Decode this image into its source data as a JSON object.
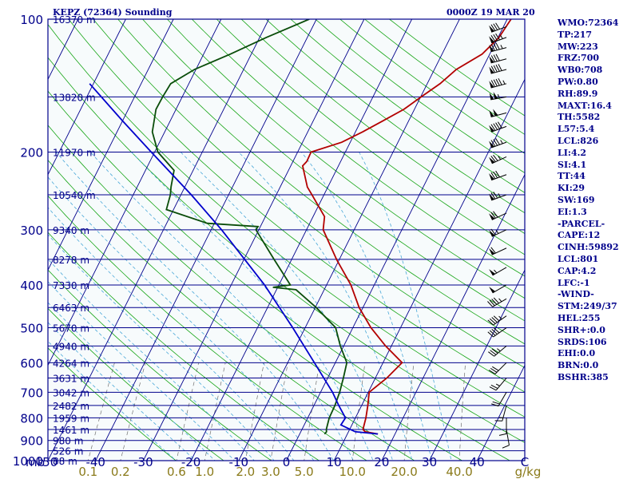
{
  "header": {
    "station": "KEPZ (72364) Sounding",
    "valid_time": "0000Z 19 MAR 20"
  },
  "stats": [
    "WMO:72364",
    "TP:217",
    "MW:223",
    "FRZ:700",
    "WB0:708",
    "PW:0.80",
    "RH:89.9",
    "MAXT:16.4",
    "TH:5582",
    "L57:5.4",
    "LCL:826",
    "LI:4.2",
    "SI:4.1",
    "TT:44",
    "KI:29",
    "SW:169",
    "EI:1.3",
    "-PARCEL-",
    "CAPE:12",
    "CINH:59892",
    "LCL:801",
    "CAP:4.2",
    "LFC:-1",
    "-WIND-",
    "STM:249/37",
    "HEL:255",
    "SHR+:0.0",
    "SRDS:106",
    "EHI:0.0",
    "BRN:0.0",
    "BSHR:385"
  ],
  "colors": {
    "frame": "#00008b",
    "background": "#f7fbfc",
    "isotherm": "#00008b",
    "dry_adiabat": "#16a516",
    "moist_adiabat": "#4aa8d8",
    "mixing_ratio": "#707070",
    "temperature": "#b30000",
    "dewpoint": "#0a4d0a",
    "parcel": "#0000cc",
    "wind_barb": "#000000",
    "mixing_ratio_label": "#8a7a1a"
  },
  "chart_data": {
    "type": "line",
    "title": "",
    "xlabel": "",
    "ylabel": "mb",
    "x_unit": "C",
    "mixing_ratio_unit": "g/kg",
    "xlim": [
      -50,
      50
    ],
    "ylim": [
      1000,
      100
    ],
    "y_scale": "log",
    "grid": true,
    "pressure_ticks": [
      100,
      200,
      300,
      400,
      500,
      600,
      700,
      800,
      900,
      1000
    ],
    "temperature_ticks": [
      -50,
      -40,
      -30,
      -20,
      -10,
      0,
      10,
      20,
      30,
      40
    ],
    "mixing_ratio_ticks": [
      {
        "label": "0.1",
        "value": 0.1
      },
      {
        "label": "0.2",
        "value": 0.2
      },
      {
        "label": "0.6",
        "value": 0.6
      },
      {
        "label": "1.0",
        "value": 1.0
      },
      {
        "label": "2.0",
        "value": 2.0
      },
      {
        "label": "3.0",
        "value": 3.0
      },
      {
        "label": "5.0",
        "value": 5.0
      },
      {
        "label": "10.0",
        "value": 10.0
      },
      {
        "label": "20.0",
        "value": 20.0
      },
      {
        "label": "40.0",
        "value": 40.0
      }
    ],
    "height_levels": [
      {
        "p": 100,
        "label": "16370 m"
      },
      {
        "p": 150,
        "label": "13820 m"
      },
      {
        "p": 200,
        "label": "11970 m"
      },
      {
        "p": 250,
        "label": "10540 m"
      },
      {
        "p": 300,
        "label": "9340 m"
      },
      {
        "p": 350,
        "label": "8278 m"
      },
      {
        "p": 400,
        "label": "7330 m"
      },
      {
        "p": 450,
        "label": "6463 m"
      },
      {
        "p": 500,
        "label": "5670 m"
      },
      {
        "p": 550,
        "label": "4940 m"
      },
      {
        "p": 600,
        "label": "4264 m"
      },
      {
        "p": 650,
        "label": "3631 m"
      },
      {
        "p": 700,
        "label": "3042 m"
      },
      {
        "p": 750,
        "label": "2482 m"
      },
      {
        "p": 800,
        "label": "1959 m"
      },
      {
        "p": 850,
        "label": "1461 m"
      },
      {
        "p": 900,
        "label": "980 m"
      },
      {
        "p": 950,
        "label": "526 m"
      },
      {
        "p": 1000,
        "label": "88 m"
      }
    ],
    "series": [
      {
        "key": "temperature",
        "points": [
          [
            870,
            16.4
          ],
          [
            860,
            13.5
          ],
          [
            850,
            12.8
          ],
          [
            800,
            12.2
          ],
          [
            750,
            11.3
          ],
          [
            700,
            10.2
          ],
          [
            650,
            12.4
          ],
          [
            600,
            14.0
          ],
          [
            550,
            8.8
          ],
          [
            500,
            3.8
          ],
          [
            450,
            -0.8
          ],
          [
            400,
            -4.9
          ],
          [
            350,
            -10.6
          ],
          [
            300,
            -16.5
          ],
          [
            280,
            -17.6
          ],
          [
            250,
            -22.5
          ],
          [
            240,
            -24.3
          ],
          [
            215,
            -27.5
          ],
          [
            210,
            -27.1
          ],
          [
            200,
            -27.2
          ],
          [
            190,
            -21.8
          ],
          [
            180,
            -18.5
          ],
          [
            170,
            -15.4
          ],
          [
            160,
            -12.2
          ],
          [
            150,
            -9.9
          ],
          [
            140,
            -7.3
          ],
          [
            130,
            -5.4
          ],
          [
            120,
            -1.6
          ],
          [
            110,
            0.2
          ],
          [
            100,
            0.8
          ]
        ]
      },
      {
        "key": "dewpoint",
        "points": [
          [
            870,
            5.2
          ],
          [
            860,
            5.4
          ],
          [
            850,
            5.1
          ],
          [
            800,
            4.5
          ],
          [
            750,
            4.4
          ],
          [
            700,
            4.0
          ],
          [
            650,
            3.3
          ],
          [
            600,
            2.4
          ],
          [
            550,
            -0.7
          ],
          [
            500,
            -3.6
          ],
          [
            450,
            -9.8
          ],
          [
            410,
            -15.9
          ],
          [
            405,
            -21.0
          ],
          [
            400,
            -17.6
          ],
          [
            350,
            -23.7
          ],
          [
            300,
            -30.6
          ],
          [
            295,
            -30.5
          ],
          [
            290,
            -41.5
          ],
          [
            270,
            -51.5
          ],
          [
            250,
            -52.2
          ],
          [
            240,
            -52.9
          ],
          [
            220,
            -54.0
          ],
          [
            200,
            -59.3
          ],
          [
            180,
            -62.6
          ],
          [
            160,
            -64.2
          ],
          [
            150,
            -64.1
          ],
          [
            140,
            -63.8
          ],
          [
            130,
            -60.3
          ],
          [
            120,
            -54.4
          ],
          [
            110,
            -48.6
          ],
          [
            100,
            -41.5
          ]
        ]
      },
      {
        "key": "parcel",
        "points": [
          [
            870,
            16.4
          ],
          [
            860,
            11.4
          ],
          [
            830,
            7.7
          ],
          [
            800,
            7.9
          ],
          [
            750,
            5.2
          ],
          [
            700,
            2.5
          ],
          [
            600,
            -4.4
          ],
          [
            500,
            -12.6
          ],
          [
            400,
            -23.0
          ],
          [
            300,
            -37.8
          ],
          [
            250,
            -47.8
          ],
          [
            200,
            -60.7
          ],
          [
            170,
            -70.0
          ],
          [
            140,
            -80.8
          ]
        ]
      }
    ],
    "wind": [
      {
        "p": 104,
        "dir": 250,
        "kt": 80
      },
      {
        "p": 110,
        "dir": 250,
        "kt": 85
      },
      {
        "p": 116,
        "dir": 255,
        "kt": 85
      },
      {
        "p": 123,
        "dir": 255,
        "kt": 80
      },
      {
        "p": 130,
        "dir": 255,
        "kt": 90
      },
      {
        "p": 140,
        "dir": 255,
        "kt": 95
      },
      {
        "p": 150,
        "dir": 260,
        "kt": 105
      },
      {
        "p": 163,
        "dir": 255,
        "kt": 100
      },
      {
        "p": 175,
        "dir": 250,
        "kt": 90
      },
      {
        "p": 190,
        "dir": 250,
        "kt": 85
      },
      {
        "p": 205,
        "dir": 245,
        "kt": 75
      },
      {
        "p": 225,
        "dir": 250,
        "kt": 80
      },
      {
        "p": 250,
        "dir": 250,
        "kt": 75
      },
      {
        "p": 275,
        "dir": 245,
        "kt": 70
      },
      {
        "p": 300,
        "dir": 245,
        "kt": 65
      },
      {
        "p": 330,
        "dir": 245,
        "kt": 60
      },
      {
        "p": 365,
        "dir": 240,
        "kt": 55
      },
      {
        "p": 400,
        "dir": 240,
        "kt": 50
      },
      {
        "p": 430,
        "dir": 240,
        "kt": 45
      },
      {
        "p": 470,
        "dir": 235,
        "kt": 45
      },
      {
        "p": 500,
        "dir": 235,
        "kt": 40
      },
      {
        "p": 550,
        "dir": 230,
        "kt": 35
      },
      {
        "p": 600,
        "dir": 225,
        "kt": 30
      },
      {
        "p": 650,
        "dir": 220,
        "kt": 25
      },
      {
        "p": 700,
        "dir": 210,
        "kt": 20
      },
      {
        "p": 750,
        "dir": 195,
        "kt": 15
      },
      {
        "p": 800,
        "dir": 180,
        "kt": 10
      },
      {
        "p": 850,
        "dir": 170,
        "kt": 10
      }
    ]
  }
}
